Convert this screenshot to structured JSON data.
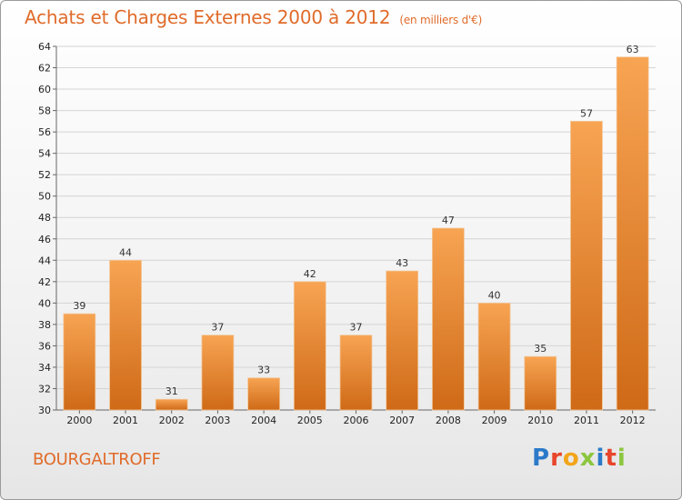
{
  "title": "Achats et Charges Externes 2000 à 2012",
  "unit": "(en milliers d'€)",
  "commune": "BOURGALTROFF",
  "brand": "Proxiti",
  "colors": {
    "bar_top": "#f7a453",
    "bar_bottom": "#cf6a17",
    "title": "#e06b2a",
    "brand_letters": [
      "#2b7ac9",
      "#e8452c",
      "#f2a51a",
      "#8cc63f",
      "#2b7ac9",
      "#e8452c",
      "#8cc63f"
    ]
  },
  "chart_data": {
    "type": "bar",
    "title": "Achats et Charges Externes 2000 à 2012",
    "categories": [
      "2000",
      "2001",
      "2002",
      "2003",
      "2004",
      "2005",
      "2006",
      "2007",
      "2008",
      "2009",
      "2010",
      "2011",
      "2012"
    ],
    "values": [
      39,
      44,
      31,
      37,
      33,
      42,
      37,
      43,
      47,
      40,
      35,
      57,
      63
    ],
    "ylim": [
      30,
      64
    ],
    "yticks": [
      30,
      32,
      34,
      36,
      38,
      40,
      42,
      44,
      46,
      48,
      50,
      52,
      54,
      56,
      58,
      60,
      62,
      64
    ],
    "grid": true,
    "data_labels": true
  }
}
